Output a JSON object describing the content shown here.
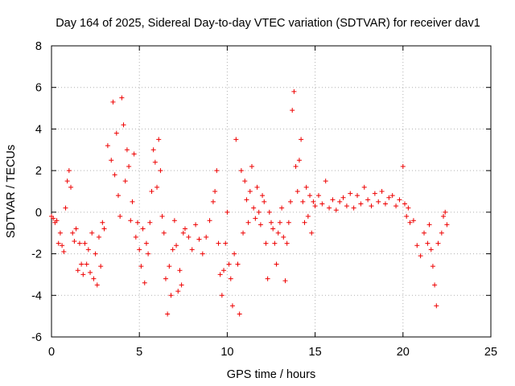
{
  "chart_data": {
    "type": "scatter",
    "title": "Day 164 of 2025, Sidereal Day-to-day VTEC variation (SDTVAR) for receiver dav1",
    "xlabel": "GPS time / hours",
    "ylabel": "SDTVAR / TECUs",
    "xlim": [
      0,
      25
    ],
    "ylim": [
      -6,
      8
    ],
    "x_ticks": [
      0,
      5,
      10,
      15,
      20,
      25
    ],
    "y_ticks": [
      -6,
      -4,
      -2,
      0,
      2,
      4,
      6,
      8
    ],
    "x_tick_labels": [
      "0",
      "5",
      "10",
      "15",
      "20",
      "25"
    ],
    "y_tick_labels": [
      "-6",
      "-4",
      "-2",
      "0",
      "2",
      "4",
      "6",
      "8"
    ],
    "grid": true,
    "marker": "+",
    "color": "#ee0000",
    "series": [
      {
        "name": "SDTVAR",
        "x": [
          0.0,
          0.1,
          0.2,
          0.3,
          0.4,
          0.5,
          0.6,
          0.7,
          0.8,
          0.9,
          1.0,
          1.1,
          1.2,
          1.3,
          1.4,
          1.5,
          1.6,
          1.7,
          1.8,
          1.9,
          2.0,
          2.1,
          2.2,
          2.3,
          2.4,
          2.5,
          2.6,
          2.7,
          2.8,
          2.9,
          3.0,
          3.2,
          3.4,
          3.5,
          3.6,
          3.7,
          3.8,
          3.9,
          4.0,
          4.1,
          4.2,
          4.3,
          4.4,
          4.5,
          4.6,
          4.7,
          4.8,
          4.9,
          5.0,
          5.1,
          5.2,
          5.3,
          5.4,
          5.5,
          5.6,
          5.7,
          5.8,
          5.9,
          6.0,
          6.1,
          6.2,
          6.3,
          6.4,
          6.5,
          6.6,
          6.7,
          6.8,
          6.9,
          7.0,
          7.1,
          7.2,
          7.3,
          7.4,
          7.5,
          7.6,
          7.8,
          8.0,
          8.2,
          8.4,
          8.6,
          8.8,
          9.0,
          9.2,
          9.3,
          9.4,
          9.5,
          9.6,
          9.7,
          9.8,
          9.9,
          10.0,
          10.1,
          10.2,
          10.3,
          10.4,
          10.5,
          10.6,
          10.7,
          10.8,
          10.9,
          11.0,
          11.1,
          11.2,
          11.3,
          11.4,
          11.5,
          11.6,
          11.7,
          11.8,
          11.9,
          12.0,
          12.1,
          12.2,
          12.3,
          12.4,
          12.5,
          12.6,
          12.7,
          12.8,
          12.9,
          13.0,
          13.1,
          13.2,
          13.3,
          13.4,
          13.5,
          13.6,
          13.7,
          13.8,
          13.9,
          14.0,
          14.1,
          14.2,
          14.3,
          14.4,
          14.5,
          14.6,
          14.7,
          14.8,
          14.9,
          15.0,
          15.2,
          15.4,
          15.6,
          15.8,
          16.0,
          16.2,
          16.4,
          16.6,
          16.8,
          17.0,
          17.2,
          17.4,
          17.6,
          17.8,
          18.0,
          18.2,
          18.4,
          18.6,
          18.8,
          19.0,
          19.2,
          19.4,
          19.6,
          19.8,
          20.0,
          20.1,
          20.2,
          20.3,
          20.4,
          20.6,
          20.8,
          21.0,
          21.2,
          21.4,
          21.5,
          21.6,
          21.7,
          21.8,
          21.9,
          22.0,
          22.2,
          22.3,
          22.4,
          22.5
        ],
        "values": [
          -0.2,
          -0.3,
          -0.5,
          -0.4,
          -1.5,
          -1.0,
          -1.6,
          -1.9,
          0.2,
          1.5,
          2.0,
          1.2,
          -1.0,
          -1.4,
          -0.8,
          -2.8,
          -1.5,
          -2.5,
          -3.0,
          -1.5,
          -2.5,
          -1.8,
          -2.9,
          -1.0,
          -3.2,
          -2.0,
          -3.5,
          -1.2,
          -2.6,
          -0.5,
          -0.8,
          3.2,
          2.5,
          5.3,
          1.8,
          3.8,
          0.8,
          -0.2,
          5.5,
          4.2,
          1.5,
          3.0,
          2.2,
          -0.4,
          0.5,
          2.8,
          -1.2,
          -0.5,
          -1.8,
          -2.6,
          -0.8,
          -3.4,
          -1.5,
          -2.0,
          -0.5,
          1.0,
          3.0,
          2.4,
          1.2,
          3.5,
          2.0,
          -0.2,
          -1.0,
          -3.2,
          -4.9,
          -2.6,
          -4.0,
          -1.8,
          -0.4,
          -1.6,
          -3.8,
          -2.8,
          -3.5,
          -1.0,
          -0.8,
          -1.2,
          -1.8,
          -0.6,
          -1.3,
          -2.0,
          -1.2,
          -0.4,
          0.5,
          1.0,
          2.0,
          -1.5,
          -3.0,
          -4.0,
          -2.8,
          -1.5,
          0.0,
          -2.5,
          -3.2,
          -4.5,
          -2.0,
          3.5,
          -2.5,
          -4.9,
          2.0,
          -1.0,
          1.5,
          0.6,
          -0.5,
          1.0,
          2.2,
          0.2,
          -0.3,
          1.2,
          0.0,
          -0.6,
          0.8,
          0.5,
          -1.5,
          -3.2,
          0.0,
          -0.5,
          -0.8,
          -1.5,
          -2.5,
          -1.0,
          -0.5,
          0.2,
          -1.2,
          -3.3,
          -1.5,
          -0.5,
          0.5,
          4.9,
          5.8,
          2.2,
          1.0,
          2.5,
          3.5,
          0.5,
          -0.5,
          1.2,
          -0.2,
          0.8,
          -1.0,
          0.5,
          0.3,
          0.8,
          0.4,
          1.5,
          0.2,
          0.6,
          0.1,
          0.5,
          0.7,
          0.3,
          0.9,
          0.2,
          0.8,
          0.4,
          1.2,
          0.6,
          0.3,
          0.9,
          0.5,
          1.0,
          0.4,
          0.7,
          0.8,
          0.3,
          0.6,
          2.2,
          0.4,
          -0.2,
          0.2,
          -0.5,
          -0.4,
          -1.6,
          -2.1,
          -1.0,
          -1.5,
          -0.6,
          -1.8,
          -2.6,
          -3.5,
          -4.5,
          -1.5,
          -1.0,
          -0.2,
          0.0,
          -0.6
        ]
      }
    ]
  }
}
